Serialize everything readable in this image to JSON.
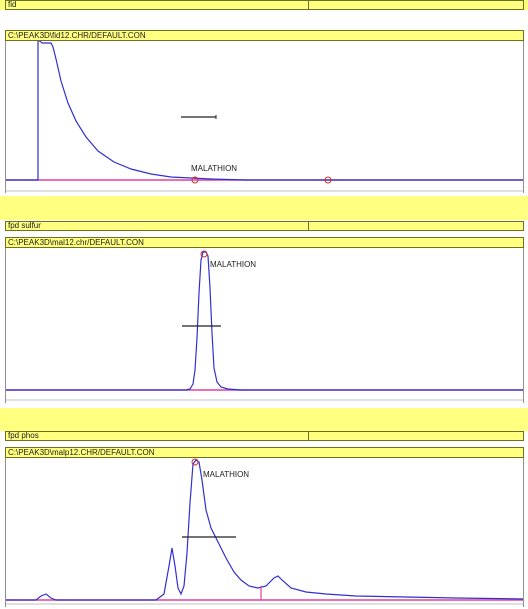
{
  "panels": [
    {
      "detector": "fid",
      "file": "C:\\PEAK3D\\fid12.CHR/DEFAULT.CON",
      "peak_label": "MALATHION"
    },
    {
      "detector": "fpd sulfur",
      "file": "C:\\PEAK3D\\mal12.chr/DEFAULT.CON",
      "peak_label": "MALATHION"
    },
    {
      "detector": "fpd phos",
      "file": "C:\\PEAK3D\\malp12.CHR/DEFAULT.CON",
      "peak_label": "MALATHION"
    }
  ],
  "colors": {
    "header_bg": "#ffff80",
    "trace": "#3030d0",
    "baseline": "#e040a0",
    "marker": "#d03030"
  }
}
